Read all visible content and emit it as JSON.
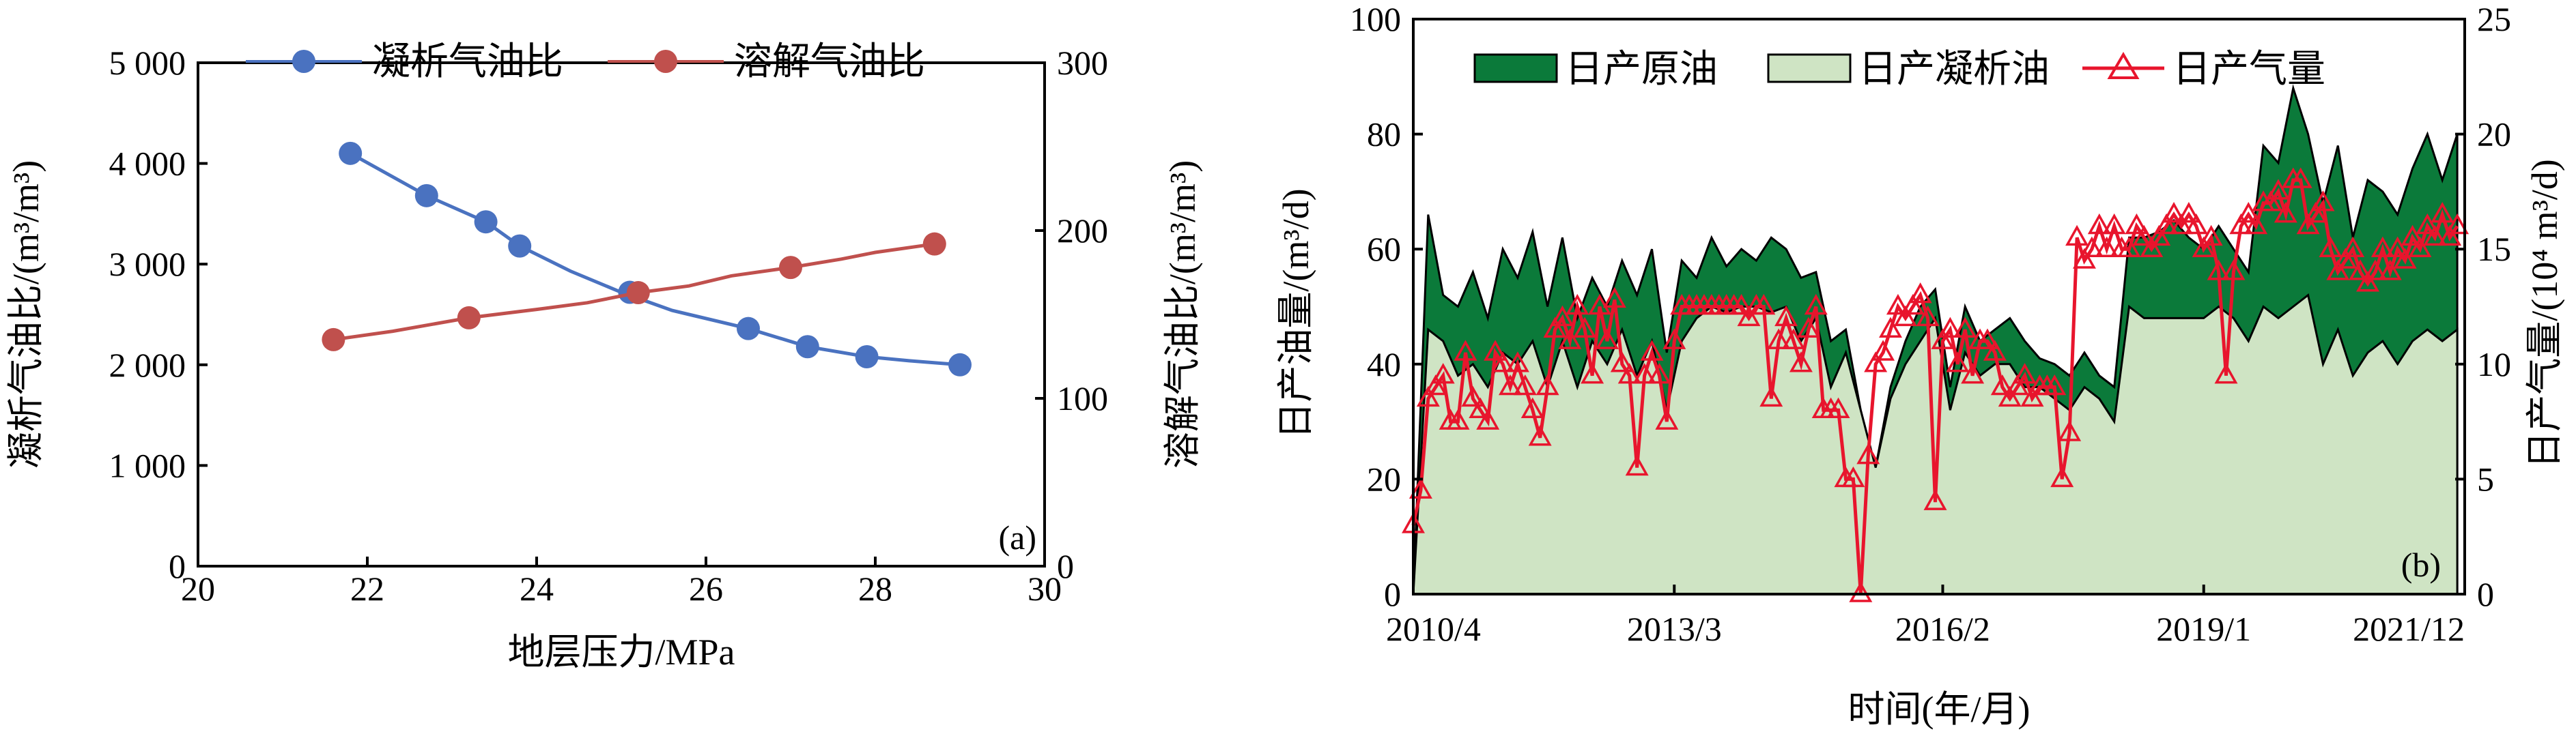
{
  "chart_data": [
    {
      "type": "line",
      "tag": "(a)",
      "xlabel": "地层压力/MPa",
      "xlim": [
        20,
        30
      ],
      "xticks": [
        20,
        22,
        24,
        26,
        28,
        30
      ],
      "ylabel_left": "凝析气油比/(m³/m³)",
      "ylim_left": [
        0,
        5000
      ],
      "yticks_left": [
        0,
        1000,
        2000,
        3000,
        4000,
        5000
      ],
      "yticklabels_left": [
        "0",
        "1 000",
        "2 000",
        "3 000",
        "4 000",
        "5 000"
      ],
      "ylabel_right": "溶解气油比/(m³/m³)",
      "ylim_right": [
        0,
        300
      ],
      "yticks_right": [
        0,
        100,
        200,
        300
      ],
      "legend_position": "top",
      "series": [
        {
          "name": "凝析气油比",
          "axis": "left",
          "color": "#4a72c0",
          "marker": "circle",
          "x": [
            21.8,
            22.7,
            23.4,
            23.8,
            24.4,
            25.0,
            25.6,
            26.5,
            27.2,
            27.9,
            28.4,
            29.0
          ],
          "y": [
            4100,
            3680,
            3420,
            3180,
            2930,
            2720,
            2540,
            2360,
            2180,
            2080,
            2040,
            2000
          ],
          "marker_x": [
            21.8,
            22.7,
            23.4,
            23.8,
            25.1,
            26.5,
            27.2,
            27.9,
            29.0
          ],
          "marker_y": [
            4100,
            3680,
            3420,
            3180,
            2720,
            2360,
            2180,
            2080,
            2000
          ]
        },
        {
          "name": "溶解气油比",
          "axis": "right",
          "color": "#c0504d",
          "marker": "circle",
          "x": [
            21.6,
            22.3,
            23.2,
            24.0,
            24.6,
            25.2,
            25.8,
            26.3,
            27.0,
            27.6,
            28.0,
            28.7
          ],
          "y": [
            135,
            140,
            148,
            153,
            157,
            163,
            167,
            173,
            178,
            183,
            187,
            192
          ],
          "marker_x": [
            21.6,
            23.2,
            25.2,
            27.0,
            28.7
          ],
          "marker_y": [
            135,
            148,
            163,
            178,
            192
          ]
        }
      ]
    },
    {
      "type": "area",
      "tag": "(b)",
      "xlabel": "时间(年/月)",
      "xlim": [
        0,
        141
      ],
      "xticks": [
        0,
        35,
        71,
        106,
        141
      ],
      "xticklabels": [
        "2010/4",
        "2013/3",
        "2016/2",
        "2019/1",
        "2021/12"
      ],
      "ylabel_left": "日产油量/(m³/d)",
      "ylim_left": [
        0,
        100
      ],
      "yticks_left": [
        0,
        20,
        40,
        60,
        80,
        100
      ],
      "ylabel_right": "日产气量/(10⁴ m³/d)",
      "ylim_right": [
        0,
        25
      ],
      "yticks_right": [
        0,
        5,
        10,
        15,
        20,
        25
      ],
      "legend_position": "top",
      "series": [
        {
          "name": "日产原油",
          "axis": "left",
          "color": "#0b7a3a",
          "fill": "area",
          "x": [
            0,
            2,
            4,
            6,
            8,
            10,
            12,
            14,
            16,
            18,
            20,
            22,
            24,
            26,
            28,
            30,
            32,
            34,
            36,
            38,
            40,
            42,
            44,
            46,
            48,
            50,
            52,
            54,
            56,
            58,
            60,
            62,
            64,
            66,
            68,
            70,
            72,
            74,
            76,
            78,
            80,
            82,
            84,
            86,
            88,
            90,
            92,
            94,
            96,
            98,
            100,
            102,
            104,
            106,
            108,
            110,
            112,
            114,
            116,
            118,
            120,
            122,
            124,
            126,
            128,
            130,
            132,
            134,
            136,
            138,
            140
          ],
          "y": [
            0,
            66,
            52,
            50,
            56,
            48,
            60,
            55,
            63,
            50,
            62,
            48,
            55,
            50,
            58,
            52,
            60,
            42,
            58,
            55,
            62,
            57,
            60,
            58,
            62,
            60,
            55,
            56,
            44,
            46,
            32,
            22,
            36,
            44,
            50,
            53,
            36,
            50,
            44,
            46,
            48,
            44,
            41,
            40,
            38,
            42,
            38,
            36,
            62,
            62,
            63,
            65,
            62,
            60,
            64,
            60,
            56,
            78,
            75,
            88,
            80,
            68,
            78,
            62,
            72,
            70,
            66,
            74,
            80,
            72,
            80
          ],
          "y_repaired_note": ""
        },
        {
          "name": "日产凝析油",
          "axis": "left",
          "color": "#cfe4c4",
          "fill": "area",
          "x": [
            0,
            2,
            4,
            6,
            8,
            10,
            12,
            14,
            16,
            18,
            20,
            22,
            24,
            26,
            28,
            30,
            32,
            34,
            36,
            38,
            40,
            42,
            44,
            46,
            48,
            50,
            52,
            54,
            56,
            58,
            60,
            62,
            64,
            66,
            68,
            70,
            72,
            74,
            76,
            78,
            80,
            82,
            84,
            86,
            88,
            90,
            92,
            94,
            96,
            98,
            100,
            102,
            104,
            106,
            108,
            110,
            112,
            114,
            116,
            118,
            120,
            122,
            124,
            126,
            128,
            130,
            132,
            134,
            136,
            138,
            140
          ],
          "y": [
            0,
            46,
            44,
            38,
            40,
            36,
            42,
            40,
            44,
            36,
            44,
            36,
            44,
            40,
            46,
            38,
            44,
            32,
            44,
            48,
            50,
            49,
            50,
            50,
            49,
            50,
            44,
            48,
            36,
            42,
            32,
            22,
            34,
            40,
            44,
            48,
            32,
            42,
            38,
            40,
            40,
            36,
            36,
            34,
            32,
            36,
            34,
            30,
            50,
            48,
            48,
            48,
            48,
            48,
            50,
            48,
            44,
            50,
            48,
            50,
            52,
            40,
            46,
            38,
            42,
            44,
            40,
            44,
            46,
            44,
            46
          ]
        },
        {
          "name": "日产气量",
          "axis": "right",
          "color": "#e8152d",
          "marker": "triangle",
          "x": [
            0,
            1,
            2,
            3,
            4,
            5,
            6,
            7,
            8,
            9,
            10,
            11,
            12,
            13,
            14,
            15,
            16,
            17,
            18,
            19,
            20,
            21,
            22,
            23,
            24,
            25,
            26,
            27,
            28,
            29,
            30,
            31,
            32,
            33,
            34,
            35,
            36,
            37,
            38,
            39,
            40,
            41,
            42,
            43,
            44,
            45,
            46,
            47,
            48,
            49,
            50,
            51,
            52,
            53,
            54,
            55,
            56,
            57,
            58,
            59,
            60,
            61,
            62,
            63,
            64,
            65,
            66,
            67,
            68,
            69,
            70,
            71,
            72,
            73,
            74,
            75,
            76,
            77,
            78,
            79,
            80,
            81,
            82,
            83,
            84,
            85,
            86,
            87,
            88,
            89,
            90,
            91,
            92,
            93,
            94,
            95,
            96,
            97,
            98,
            99,
            100,
            101,
            102,
            103,
            104,
            105,
            106,
            107,
            108,
            109,
            110,
            111,
            112,
            113,
            114,
            115,
            116,
            117,
            118,
            119,
            120,
            121,
            122,
            123,
            124,
            125,
            126,
            127,
            128,
            129,
            130,
            131,
            132,
            133,
            134,
            135,
            136,
            137,
            138,
            139,
            140
          ],
          "y": [
            3.0,
            4.5,
            8.5,
            9.0,
            9.5,
            7.5,
            7.5,
            10.5,
            8.5,
            8.0,
            7.5,
            10.5,
            10.0,
            9.0,
            10.0,
            9.0,
            8.0,
            6.8,
            9.0,
            11.5,
            12.0,
            11.0,
            12.5,
            11.5,
            9.5,
            12.5,
            11.0,
            12.8,
            10.0,
            9.5,
            5.5,
            9.5,
            10.5,
            9.5,
            7.5,
            11.0,
            12.5,
            12.5,
            12.5,
            12.5,
            12.5,
            12.5,
            12.5,
            12.5,
            12.5,
            12.0,
            12.5,
            12.5,
            8.5,
            11.0,
            12.0,
            11.0,
            10.0,
            11.5,
            12.5,
            8.0,
            8.0,
            8.0,
            5.0,
            5.0,
            0.0,
            6.0,
            10.0,
            10.5,
            11.5,
            12.5,
            12.0,
            12.5,
            13.0,
            12.0,
            4.0,
            11.0,
            11.5,
            10.0,
            11.5,
            9.5,
            11.0,
            11.0,
            10.5,
            9.0,
            8.5,
            9.0,
            9.5,
            8.5,
            9.0,
            9.0,
            9.0,
            5.0,
            7.0,
            15.5,
            14.5,
            15.0,
            16.0,
            15.0,
            16.0,
            15.0,
            15.0,
            16.0,
            15.5,
            15.0,
            15.5,
            16.0,
            16.5,
            16.0,
            16.5,
            16.0,
            15.0,
            15.5,
            14.0,
            9.5,
            14.0,
            16.0,
            16.5,
            16.0,
            17.0,
            17.0,
            17.5,
            16.5,
            18.0,
            18.0,
            16.0,
            16.5,
            17.0,
            15.0,
            14.0,
            14.5,
            15.0,
            14.0,
            13.5,
            14.0,
            15.0,
            14.0,
            15.0,
            14.5,
            15.5,
            15.0,
            16.0,
            15.5,
            16.5,
            15.5,
            16.0
          ]
        }
      ]
    }
  ]
}
